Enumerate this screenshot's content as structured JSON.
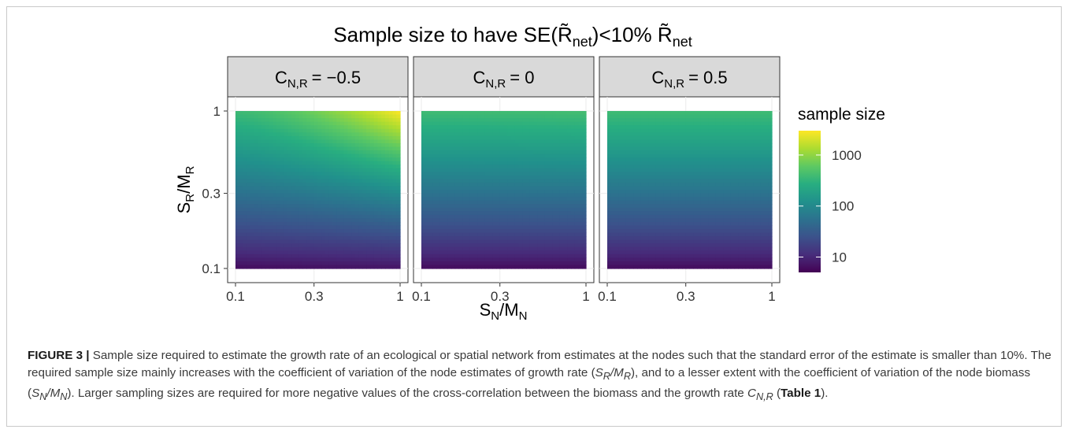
{
  "chart_data": {
    "type": "heatmap",
    "title": "Sample size to have SE(R̃net)<10% R̃net",
    "title_parts": {
      "lead": "Sample size to have SE(",
      "r": "R̃",
      "sub1": "net",
      "mid": ")<10% ",
      "sub2": "net"
    },
    "xlabel": {
      "main": "S",
      "sub1": "N",
      "slash": "/M",
      "sub2": "N"
    },
    "ylabel": {
      "main": "S",
      "sub1": "R",
      "slash": "/M",
      "sub2": "R"
    },
    "x_scale": "log",
    "y_scale": "log",
    "x_range": [
      0.1,
      1
    ],
    "y_range": [
      0.1,
      1
    ],
    "x_ticks": [
      0.1,
      0.3,
      1
    ],
    "y_ticks": [
      0.1,
      0.3,
      1
    ],
    "x_tick_labels": [
      "0.1",
      "0.3",
      "1"
    ],
    "y_tick_labels": [
      "0.1",
      "0.3",
      "1"
    ],
    "grid": true,
    "legend": {
      "title": "sample size",
      "scale": "log",
      "range": [
        5,
        3000
      ],
      "ticks": [
        10,
        100,
        1000
      ],
      "tick_labels": [
        "10",
        "100",
        "1000"
      ],
      "placement": "right"
    },
    "colormap": [
      "#440154",
      "#472d7b",
      "#3b528b",
      "#2c728e",
      "#21918c",
      "#28ae80",
      "#5ec962",
      "#addc30",
      "#fde725"
    ],
    "panels": [
      {
        "strip": {
          "main": "C",
          "sub": "N,R",
          "value": "= −0.5"
        },
        "C": -0.5,
        "corner_samples": [
          {
            "x": 0.1,
            "y": 0.1,
            "sample_size": 6
          },
          {
            "x": 1,
            "y": 0.1,
            "sample_size": 7
          },
          {
            "x": 0.1,
            "y": 1,
            "sample_size": 380
          },
          {
            "x": 1,
            "y": 1,
            "sample_size": 3000
          }
        ]
      },
      {
        "strip": {
          "main": "C",
          "sub": "N,R",
          "value": "= 0"
        },
        "C": 0,
        "corner_samples": [
          {
            "x": 0.1,
            "y": 0.1,
            "sample_size": 6
          },
          {
            "x": 1,
            "y": 0.1,
            "sample_size": 6
          },
          {
            "x": 0.1,
            "y": 1,
            "sample_size": 390
          },
          {
            "x": 1,
            "y": 1,
            "sample_size": 420
          }
        ]
      },
      {
        "strip": {
          "main": "C",
          "sub": "N,R",
          "value": "= 0.5"
        },
        "C": 0.5,
        "corner_samples": [
          {
            "x": 0.1,
            "y": 0.1,
            "sample_size": 6
          },
          {
            "x": 1,
            "y": 0.1,
            "sample_size": 6
          },
          {
            "x": 0.1,
            "y": 1,
            "sample_size": 390
          },
          {
            "x": 1,
            "y": 1,
            "sample_size": 390
          }
        ]
      }
    ]
  },
  "caption": {
    "label": "FIGURE 3 |",
    "t1": " Sample size required to estimate the growth rate of an ecological or spatial network from estimates at the nodes such that the standard error of the estimate is smaller than 10%. The required sample size mainly increases with the coefficient of variation of the node estimates of growth rate (",
    "sr_mr": "S",
    "sr_sub": "R",
    "sr_mid": "/M",
    "sr_sub2": "R",
    "t2": "), and to a lesser extent with the coefficient of variation of the node biomass (",
    "sn_mn": "S",
    "sn_sub": "N",
    "sn_mid": "/M",
    "sn_sub2": "N",
    "t3": "). Larger sampling sizes are required for more negative values of the cross-correlation between the biomass and the growth rate ",
    "c": "C",
    "c_sub": "N,R",
    "t4": " (",
    "table_ref": "Table 1",
    "t5": ")."
  }
}
